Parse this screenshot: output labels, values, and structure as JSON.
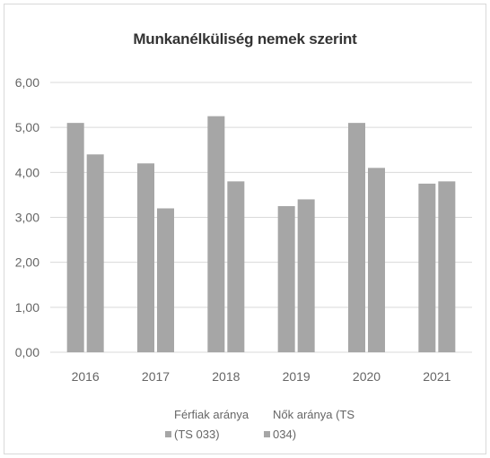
{
  "colors": {
    "men": "#a6a6a6",
    "women": "#a6a6a6",
    "grid": "#d9d9d9",
    "text": "#666666",
    "title": "#333333"
  },
  "chart_data": {
    "type": "bar",
    "title": "Munkanélküliség nemek szerint",
    "xlabel": "",
    "ylabel": "",
    "categories": [
      "2016",
      "2017",
      "2018",
      "2019",
      "2020",
      "2021"
    ],
    "series": [
      {
        "name": "Férfiak aránya (TS 033)",
        "values": [
          5.1,
          4.2,
          5.25,
          3.25,
          5.1,
          3.75
        ]
      },
      {
        "name": "Nők aránya (TS 034)",
        "values": [
          4.4,
          3.2,
          3.8,
          3.4,
          4.1,
          3.8
        ]
      }
    ],
    "yticks": [
      "0,00",
      "1,00",
      "2,00",
      "3,00",
      "4,00",
      "5,00",
      "6,00"
    ],
    "ylim": [
      0,
      6
    ],
    "grid": true,
    "legend": "bottom"
  }
}
